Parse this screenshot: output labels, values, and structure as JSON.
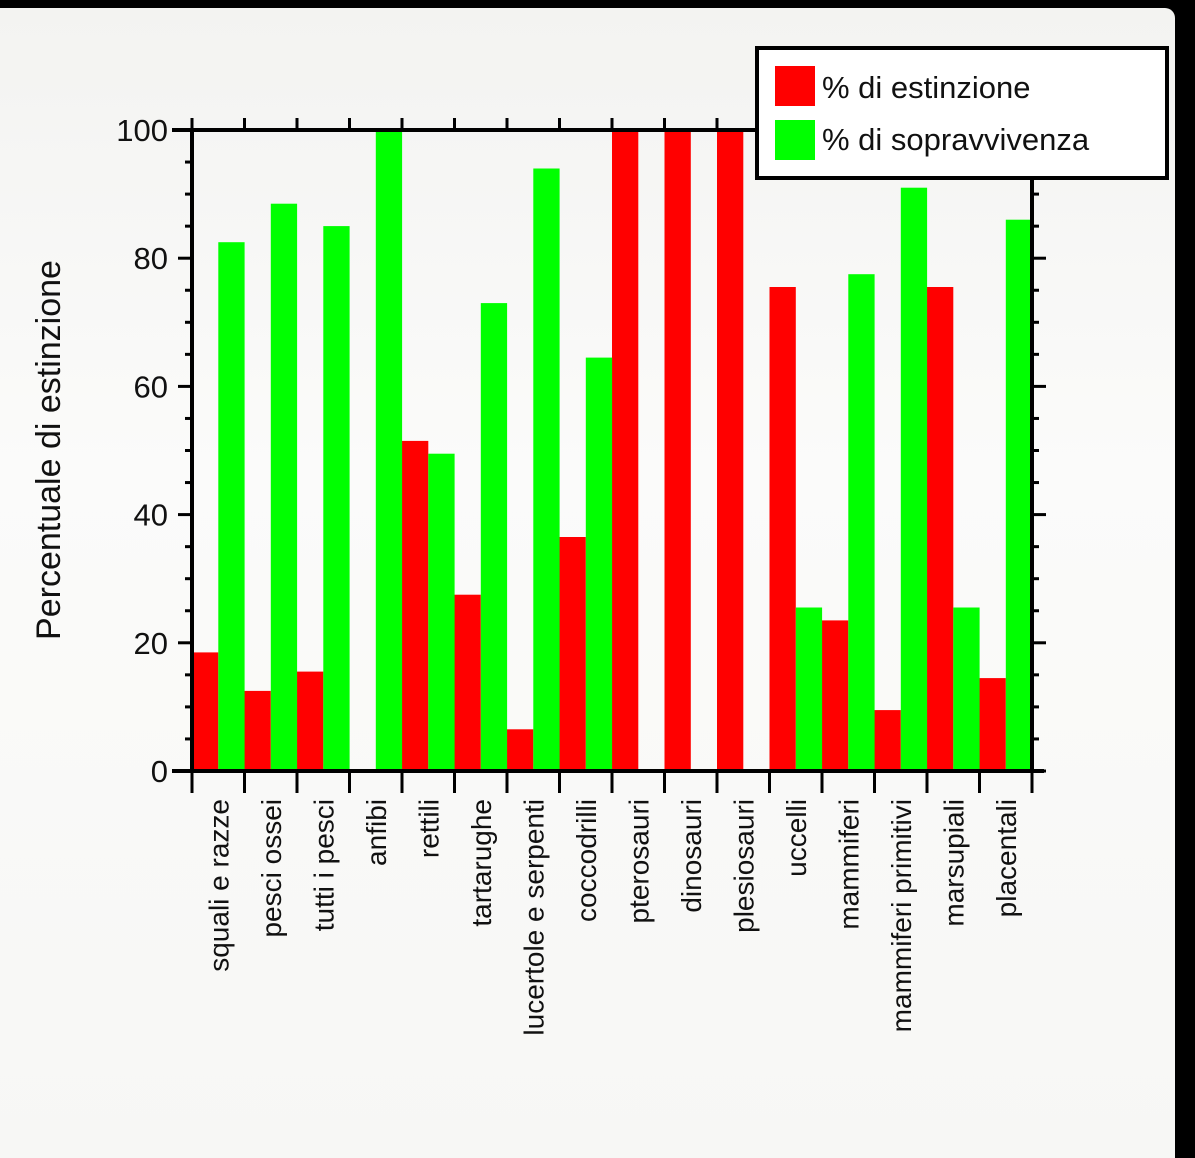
{
  "chart_data": {
    "type": "bar",
    "ylabel": "Percentuale di estinzione",
    "xlabel": "",
    "ylim": [
      0,
      100
    ],
    "yticks": [
      0,
      20,
      40,
      60,
      80,
      100
    ],
    "legend_position": "top-right",
    "categories": [
      "squali e razze",
      "pesci ossei",
      "tutti i pesci",
      "anfibi",
      "rettili",
      "tartarughe",
      "lucertole e serpenti",
      "coccodrilli",
      "pterosauri",
      "dinosauri",
      "plesiosauri",
      "uccelli",
      "mammiferi",
      "mammiferi primitivi",
      "marsupiali",
      "placentali"
    ],
    "series": [
      {
        "name": "% di estinzione",
        "color": "#ff0000",
        "values": [
          18.5,
          12.5,
          15.5,
          0,
          51.5,
          27.5,
          6.5,
          36.5,
          100,
          100,
          100,
          75.5,
          23.5,
          9.5,
          75.5,
          14.5
        ]
      },
      {
        "name": "% di sopravvivenza",
        "color": "#00ff00",
        "values": [
          82.5,
          88.5,
          85,
          100,
          49.5,
          73,
          94,
          64.5,
          0,
          0,
          0,
          25.5,
          77.5,
          91,
          25.5,
          86
        ]
      }
    ]
  }
}
